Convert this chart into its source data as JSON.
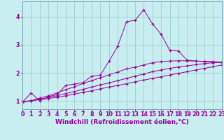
{
  "background_color": "#c8eef0",
  "grid_color": "#9ecece",
  "line_color": "#990099",
  "marker": "+",
  "xlabel": "Windchill (Refroidissement éolien,°C)",
  "xlabel_fontsize": 6.5,
  "tick_fontsize": 5.8,
  "xlim": [
    0,
    23
  ],
  "ylim": [
    0.7,
    4.55
  ],
  "yticks": [
    1,
    2,
    3,
    4
  ],
  "xticks": [
    0,
    1,
    2,
    3,
    4,
    5,
    6,
    7,
    8,
    9,
    10,
    11,
    12,
    13,
    14,
    15,
    16,
    17,
    18,
    19,
    20,
    21,
    22,
    23
  ],
  "series": [
    [
      0.95,
      1.28,
      1.0,
      1.15,
      1.22,
      1.55,
      1.6,
      1.65,
      1.88,
      1.92,
      2.42,
      2.95,
      3.82,
      3.88,
      4.25,
      3.75,
      3.38,
      2.8,
      2.78,
      2.45,
      2.42,
      2.4,
      2.38,
      2.37
    ],
    [
      0.95,
      1.0,
      1.1,
      1.18,
      1.28,
      1.4,
      1.5,
      1.62,
      1.72,
      1.82,
      1.93,
      2.03,
      2.14,
      2.2,
      2.28,
      2.36,
      2.4,
      2.42,
      2.43,
      2.43,
      2.42,
      2.41,
      2.4,
      2.38
    ],
    [
      0.98,
      1.0,
      1.06,
      1.12,
      1.18,
      1.26,
      1.33,
      1.41,
      1.49,
      1.57,
      1.64,
      1.72,
      1.8,
      1.88,
      1.96,
      2.04,
      2.1,
      2.16,
      2.21,
      2.25,
      2.29,
      2.33,
      2.36,
      2.38
    ],
    [
      0.98,
      1.0,
      1.04,
      1.08,
      1.13,
      1.18,
      1.24,
      1.3,
      1.36,
      1.43,
      1.49,
      1.55,
      1.61,
      1.68,
      1.74,
      1.8,
      1.86,
      1.92,
      1.98,
      2.04,
      2.1,
      2.16,
      2.22,
      2.28
    ]
  ]
}
